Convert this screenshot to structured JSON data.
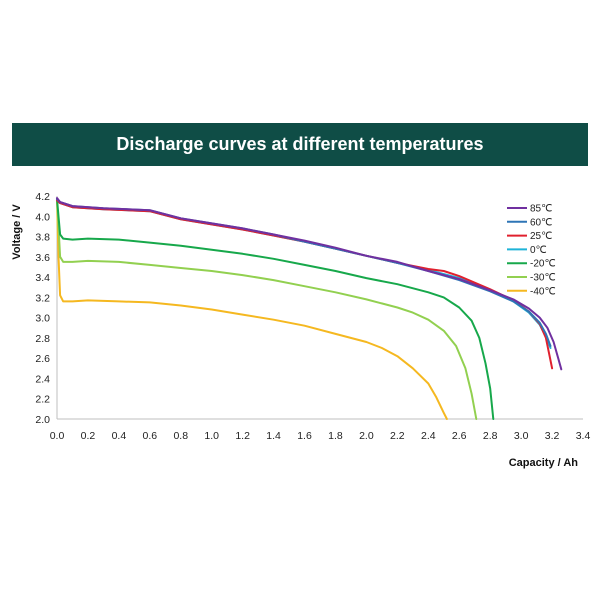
{
  "chart_data": {
    "type": "line",
    "title": "Discharge curves at different temperatures",
    "xlabel": "Capacity / Ah",
    "ylabel": "Voltage / V",
    "xlim": [
      0,
      3.4
    ],
    "ylim": [
      2.0,
      4.2
    ],
    "xticks": [
      "0.0",
      "0.2",
      "0.4",
      "0.6",
      "0.8",
      "1.0",
      "1.2",
      "1.4",
      "1.6",
      "1.8",
      "2.0",
      "2.2",
      "2.4",
      "2.6",
      "2.8",
      "3.0",
      "3.2",
      "3.4"
    ],
    "yticks": [
      "2.0",
      "2.2",
      "2.4",
      "2.6",
      "2.8",
      "3.0",
      "3.2",
      "3.4",
      "3.6",
      "3.8",
      "4.0",
      "4.2"
    ],
    "grid": false,
    "legend_position": "top-right",
    "series": [
      {
        "name": "85℃",
        "color": "#7030a0",
        "points": [
          [
            0,
            4.18
          ],
          [
            0.02,
            4.14
          ],
          [
            0.1,
            4.1
          ],
          [
            0.3,
            4.08
          ],
          [
            0.6,
            4.06
          ],
          [
            0.8,
            3.98
          ],
          [
            1.0,
            3.93
          ],
          [
            1.2,
            3.88
          ],
          [
            1.4,
            3.82
          ],
          [
            1.6,
            3.76
          ],
          [
            1.8,
            3.69
          ],
          [
            2.0,
            3.61
          ],
          [
            2.2,
            3.55
          ],
          [
            2.4,
            3.46
          ],
          [
            2.6,
            3.38
          ],
          [
            2.8,
            3.27
          ],
          [
            2.95,
            3.18
          ],
          [
            3.05,
            3.09
          ],
          [
            3.12,
            3.0
          ],
          [
            3.17,
            2.9
          ],
          [
            3.21,
            2.76
          ],
          [
            3.24,
            2.6
          ],
          [
            3.26,
            2.49
          ]
        ]
      },
      {
        "name": "60℃",
        "color": "#2e75b6",
        "points": [
          [
            0,
            4.17
          ],
          [
            0.02,
            4.14
          ],
          [
            0.1,
            4.1
          ],
          [
            0.3,
            4.08
          ],
          [
            0.6,
            4.06
          ],
          [
            0.8,
            3.98
          ],
          [
            1.0,
            3.93
          ],
          [
            1.2,
            3.88
          ],
          [
            1.4,
            3.82
          ],
          [
            1.6,
            3.75
          ],
          [
            1.8,
            3.68
          ],
          [
            2.0,
            3.61
          ],
          [
            2.2,
            3.54
          ],
          [
            2.4,
            3.46
          ],
          [
            2.6,
            3.37
          ],
          [
            2.8,
            3.26
          ],
          [
            2.95,
            3.16
          ],
          [
            3.05,
            3.06
          ],
          [
            3.12,
            2.95
          ],
          [
            3.16,
            2.84
          ],
          [
            3.19,
            2.72
          ]
        ]
      },
      {
        "name": "25℃",
        "color": "#e0202e",
        "points": [
          [
            0,
            4.16
          ],
          [
            0.02,
            4.13
          ],
          [
            0.1,
            4.09
          ],
          [
            0.3,
            4.07
          ],
          [
            0.6,
            4.05
          ],
          [
            0.8,
            3.97
          ],
          [
            1.0,
            3.92
          ],
          [
            1.2,
            3.87
          ],
          [
            1.4,
            3.81
          ],
          [
            1.6,
            3.75
          ],
          [
            1.8,
            3.68
          ],
          [
            2.0,
            3.61
          ],
          [
            2.2,
            3.54
          ],
          [
            2.4,
            3.48
          ],
          [
            2.5,
            3.46
          ],
          [
            2.6,
            3.41
          ],
          [
            2.8,
            3.28
          ],
          [
            2.95,
            3.17
          ],
          [
            3.05,
            3.06
          ],
          [
            3.12,
            2.94
          ],
          [
            3.16,
            2.8
          ],
          [
            3.18,
            2.65
          ],
          [
            3.2,
            2.5
          ]
        ]
      },
      {
        "name": "0℃",
        "color": "#1fb3d8",
        "points": [
          [
            0,
            4.17
          ],
          [
            0.02,
            4.13
          ],
          [
            0.1,
            4.09
          ],
          [
            0.3,
            4.07
          ],
          [
            0.6,
            4.05
          ],
          [
            0.8,
            3.97
          ],
          [
            1.0,
            3.92
          ],
          [
            1.2,
            3.87
          ],
          [
            1.4,
            3.81
          ],
          [
            1.6,
            3.75
          ],
          [
            1.8,
            3.68
          ],
          [
            2.0,
            3.61
          ],
          [
            2.2,
            3.54
          ],
          [
            2.4,
            3.47
          ],
          [
            2.6,
            3.39
          ],
          [
            2.8,
            3.27
          ],
          [
            2.95,
            3.16
          ],
          [
            3.05,
            3.05
          ],
          [
            3.12,
            2.93
          ],
          [
            3.16,
            2.81
          ],
          [
            3.19,
            2.7
          ]
        ]
      },
      {
        "name": "-20℃",
        "color": "#17a84b",
        "points": [
          [
            0,
            4.17
          ],
          [
            0.01,
            4.0
          ],
          [
            0.02,
            3.82
          ],
          [
            0.04,
            3.78
          ],
          [
            0.1,
            3.77
          ],
          [
            0.2,
            3.78
          ],
          [
            0.4,
            3.77
          ],
          [
            0.6,
            3.74
          ],
          [
            0.8,
            3.71
          ],
          [
            1.0,
            3.67
          ],
          [
            1.2,
            3.63
          ],
          [
            1.4,
            3.58
          ],
          [
            1.6,
            3.52
          ],
          [
            1.8,
            3.46
          ],
          [
            2.0,
            3.39
          ],
          [
            2.2,
            3.33
          ],
          [
            2.4,
            3.25
          ],
          [
            2.5,
            3.2
          ],
          [
            2.6,
            3.1
          ],
          [
            2.68,
            2.97
          ],
          [
            2.73,
            2.8
          ],
          [
            2.77,
            2.55
          ],
          [
            2.8,
            2.3
          ],
          [
            2.82,
            2.0
          ]
        ]
      },
      {
        "name": "-30℃",
        "color": "#92d050",
        "points": [
          [
            0,
            4.17
          ],
          [
            0.01,
            3.9
          ],
          [
            0.02,
            3.6
          ],
          [
            0.04,
            3.55
          ],
          [
            0.1,
            3.55
          ],
          [
            0.2,
            3.56
          ],
          [
            0.4,
            3.55
          ],
          [
            0.6,
            3.52
          ],
          [
            0.8,
            3.49
          ],
          [
            1.0,
            3.46
          ],
          [
            1.2,
            3.42
          ],
          [
            1.4,
            3.37
          ],
          [
            1.6,
            3.31
          ],
          [
            1.8,
            3.25
          ],
          [
            2.0,
            3.18
          ],
          [
            2.2,
            3.1
          ],
          [
            2.3,
            3.05
          ],
          [
            2.4,
            2.98
          ],
          [
            2.5,
            2.87
          ],
          [
            2.58,
            2.72
          ],
          [
            2.64,
            2.5
          ],
          [
            2.68,
            2.25
          ],
          [
            2.71,
            2.0
          ]
        ]
      },
      {
        "name": "-40℃",
        "color": "#f5b820",
        "points": [
          [
            0,
            4.17
          ],
          [
            0.01,
            3.6
          ],
          [
            0.02,
            3.22
          ],
          [
            0.04,
            3.16
          ],
          [
            0.1,
            3.16
          ],
          [
            0.2,
            3.17
          ],
          [
            0.4,
            3.16
          ],
          [
            0.6,
            3.15
          ],
          [
            0.8,
            3.12
          ],
          [
            1.0,
            3.08
          ],
          [
            1.2,
            3.03
          ],
          [
            1.4,
            2.98
          ],
          [
            1.6,
            2.92
          ],
          [
            1.8,
            2.84
          ],
          [
            2.0,
            2.76
          ],
          [
            2.1,
            2.7
          ],
          [
            2.2,
            2.62
          ],
          [
            2.3,
            2.5
          ],
          [
            2.4,
            2.35
          ],
          [
            2.45,
            2.22
          ],
          [
            2.5,
            2.06
          ],
          [
            2.52,
            2.0
          ]
        ]
      }
    ]
  }
}
